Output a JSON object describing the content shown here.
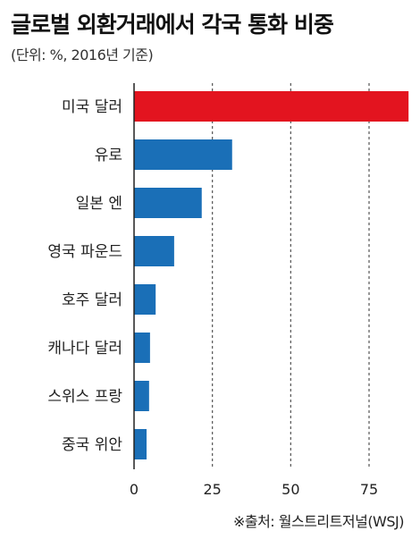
{
  "title": "글로벌 외환거래에서 각국 통화 비중",
  "subtitle": "(단위: %, 2016년 기준)",
  "source": "※출처: 월스트리트저널(WSJ)",
  "colors": {
    "highlight": "#e3141f",
    "bar": "#1a6fb7",
    "grid": "#555555",
    "axis": "#222222"
  },
  "chart_data": {
    "type": "bar",
    "orientation": "horizontal",
    "categories": [
      "미국 달러",
      "유로",
      "일본 엔",
      "영국 파운드",
      "호주 달러",
      "캐나다 달러",
      "스위스 프랑",
      "중국 위안"
    ],
    "values": [
      87.6,
      31.3,
      21.6,
      12.8,
      6.9,
      5.1,
      4.8,
      4.0
    ],
    "highlight": "미국 달러",
    "xlim": [
      0,
      88
    ],
    "ticks": [
      0,
      25,
      50,
      75
    ],
    "grid": true
  }
}
